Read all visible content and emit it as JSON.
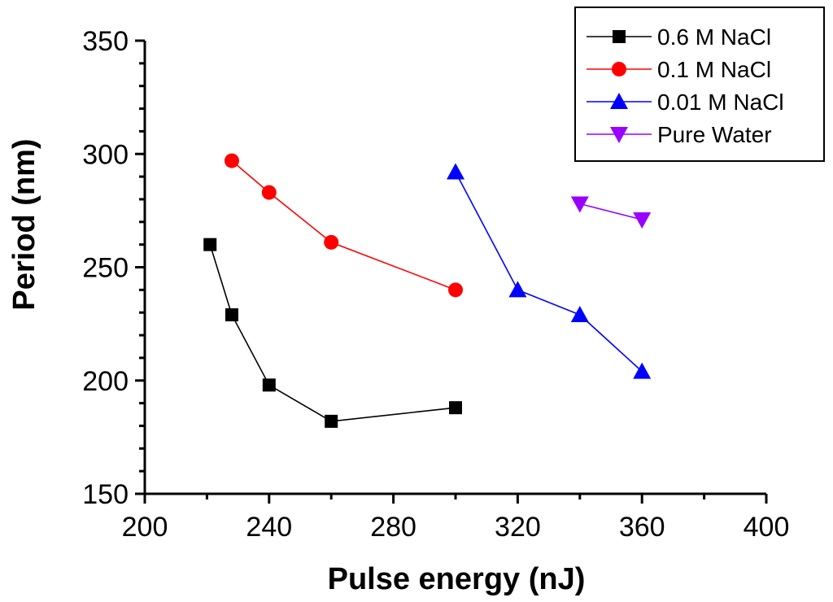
{
  "chart_data": {
    "type": "line",
    "title": "",
    "xlabel": "Pulse energy (nJ)",
    "ylabel": "Period (nm)",
    "xlim": [
      200,
      400
    ],
    "ylim": [
      150,
      350
    ],
    "xticks": [
      200,
      240,
      280,
      320,
      360,
      400
    ],
    "yticks": [
      150,
      200,
      250,
      300,
      350
    ],
    "xtick_labels": [
      "200",
      "240",
      "280",
      "320",
      "360",
      "400"
    ],
    "ytick_labels": [
      "150",
      "200",
      "250",
      "300",
      "350"
    ],
    "grid": false,
    "legend_position": "top-right",
    "series": [
      {
        "name": "0.6 M NaCl",
        "color": "#000000",
        "marker": "square",
        "x": [
          221,
          228,
          240,
          260,
          300
        ],
        "y": [
          260,
          229,
          198,
          182,
          188
        ]
      },
      {
        "name": "0.1 M NaCl",
        "color": "#ff0000",
        "marker": "circle",
        "x": [
          228,
          240,
          260,
          300
        ],
        "y": [
          297,
          283,
          261,
          240
        ]
      },
      {
        "name": "0.01 M NaCl",
        "color": "#0000ff",
        "marker": "triangle-up",
        "x": [
          300,
          320,
          340,
          360
        ],
        "y": [
          292,
          240,
          229,
          204
        ]
      },
      {
        "name": "Pure Water",
        "color": "#9900ff",
        "marker": "triangle-down",
        "x": [
          340,
          360
        ],
        "y": [
          278,
          271
        ]
      }
    ]
  }
}
